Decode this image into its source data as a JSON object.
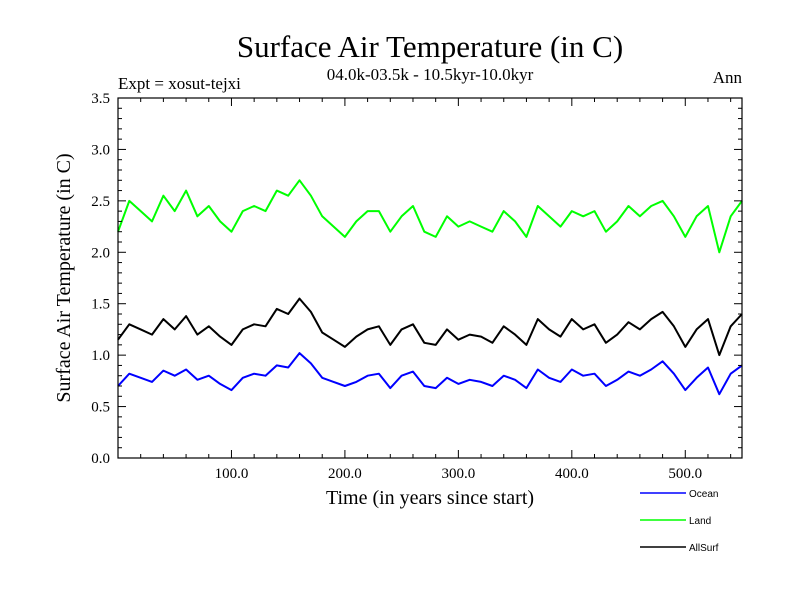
{
  "chart_data": {
    "type": "line",
    "title": "Surface Air Temperature (in C)",
    "subtitle": "04.0k-03.5k - 10.5kyr-10.0kyr",
    "expt_label": "Expt = xosut-tejxi",
    "period_label": "Ann",
    "xlabel": "Time (in years since start)",
    "ylabel": "Surface Air Temperature (in C)",
    "xlim": [
      0,
      550
    ],
    "ylim": [
      0.0,
      3.5
    ],
    "x_ticks": [
      100,
      200,
      300,
      400,
      500
    ],
    "x_tick_labels": [
      "100.0",
      "200.0",
      "300.0",
      "400.0",
      "500.0"
    ],
    "y_ticks": [
      0.0,
      0.5,
      1.0,
      1.5,
      2.0,
      2.5,
      3.0,
      3.5
    ],
    "y_tick_labels": [
      "0.0",
      "0.5",
      "1.0",
      "1.5",
      "2.0",
      "2.5",
      "3.0",
      "3.5"
    ],
    "series": [
      {
        "name": "Ocean",
        "color": "#0000ff",
        "x": [
          0,
          10,
          20,
          30,
          40,
          50,
          60,
          70,
          80,
          90,
          100,
          110,
          120,
          130,
          140,
          150,
          160,
          170,
          180,
          190,
          200,
          210,
          220,
          230,
          240,
          250,
          260,
          270,
          280,
          290,
          300,
          310,
          320,
          330,
          340,
          350,
          360,
          370,
          380,
          390,
          400,
          410,
          420,
          430,
          440,
          450,
          460,
          470,
          480,
          490,
          500,
          510,
          520,
          530,
          540,
          550
        ],
        "y": [
          0.7,
          0.82,
          0.78,
          0.74,
          0.85,
          0.8,
          0.86,
          0.76,
          0.8,
          0.72,
          0.66,
          0.78,
          0.82,
          0.8,
          0.9,
          0.88,
          1.02,
          0.92,
          0.78,
          0.74,
          0.7,
          0.74,
          0.8,
          0.82,
          0.68,
          0.8,
          0.84,
          0.7,
          0.68,
          0.78,
          0.72,
          0.76,
          0.74,
          0.7,
          0.8,
          0.76,
          0.68,
          0.86,
          0.78,
          0.74,
          0.86,
          0.8,
          0.82,
          0.7,
          0.76,
          0.84,
          0.8,
          0.86,
          0.94,
          0.82,
          0.66,
          0.78,
          0.88,
          0.62,
          0.82,
          0.9
        ]
      },
      {
        "name": "Land",
        "color": "#00ff00",
        "x": [
          0,
          10,
          20,
          30,
          40,
          50,
          60,
          70,
          80,
          90,
          100,
          110,
          120,
          130,
          140,
          150,
          160,
          170,
          180,
          190,
          200,
          210,
          220,
          230,
          240,
          250,
          260,
          270,
          280,
          290,
          300,
          310,
          320,
          330,
          340,
          350,
          360,
          370,
          380,
          390,
          400,
          410,
          420,
          430,
          440,
          450,
          460,
          470,
          480,
          490,
          500,
          510,
          520,
          530,
          540,
          550
        ],
        "y": [
          2.2,
          2.5,
          2.4,
          2.3,
          2.55,
          2.4,
          2.6,
          2.35,
          2.45,
          2.3,
          2.2,
          2.4,
          2.45,
          2.4,
          2.6,
          2.55,
          2.7,
          2.55,
          2.35,
          2.25,
          2.15,
          2.3,
          2.4,
          2.4,
          2.2,
          2.35,
          2.45,
          2.2,
          2.15,
          2.35,
          2.25,
          2.3,
          2.25,
          2.2,
          2.4,
          2.3,
          2.15,
          2.45,
          2.35,
          2.25,
          2.4,
          2.35,
          2.4,
          2.2,
          2.3,
          2.45,
          2.35,
          2.45,
          2.5,
          2.35,
          2.15,
          2.35,
          2.45,
          2.0,
          2.35,
          2.5
        ]
      },
      {
        "name": "AllSurf",
        "color": "#000000",
        "x": [
          0,
          10,
          20,
          30,
          40,
          50,
          60,
          70,
          80,
          90,
          100,
          110,
          120,
          130,
          140,
          150,
          160,
          170,
          180,
          190,
          200,
          210,
          220,
          230,
          240,
          250,
          260,
          270,
          280,
          290,
          300,
          310,
          320,
          330,
          340,
          350,
          360,
          370,
          380,
          390,
          400,
          410,
          420,
          430,
          440,
          450,
          460,
          470,
          480,
          490,
          500,
          510,
          520,
          530,
          540,
          550
        ],
        "y": [
          1.15,
          1.3,
          1.25,
          1.2,
          1.35,
          1.25,
          1.38,
          1.2,
          1.28,
          1.18,
          1.1,
          1.25,
          1.3,
          1.28,
          1.45,
          1.4,
          1.55,
          1.42,
          1.22,
          1.15,
          1.08,
          1.18,
          1.25,
          1.28,
          1.1,
          1.25,
          1.3,
          1.12,
          1.1,
          1.25,
          1.15,
          1.2,
          1.18,
          1.12,
          1.28,
          1.2,
          1.1,
          1.35,
          1.25,
          1.18,
          1.35,
          1.25,
          1.3,
          1.12,
          1.2,
          1.32,
          1.25,
          1.35,
          1.42,
          1.28,
          1.08,
          1.25,
          1.35,
          1.0,
          1.28,
          1.4
        ]
      }
    ],
    "legend_position": "bottom-right, below plot"
  }
}
